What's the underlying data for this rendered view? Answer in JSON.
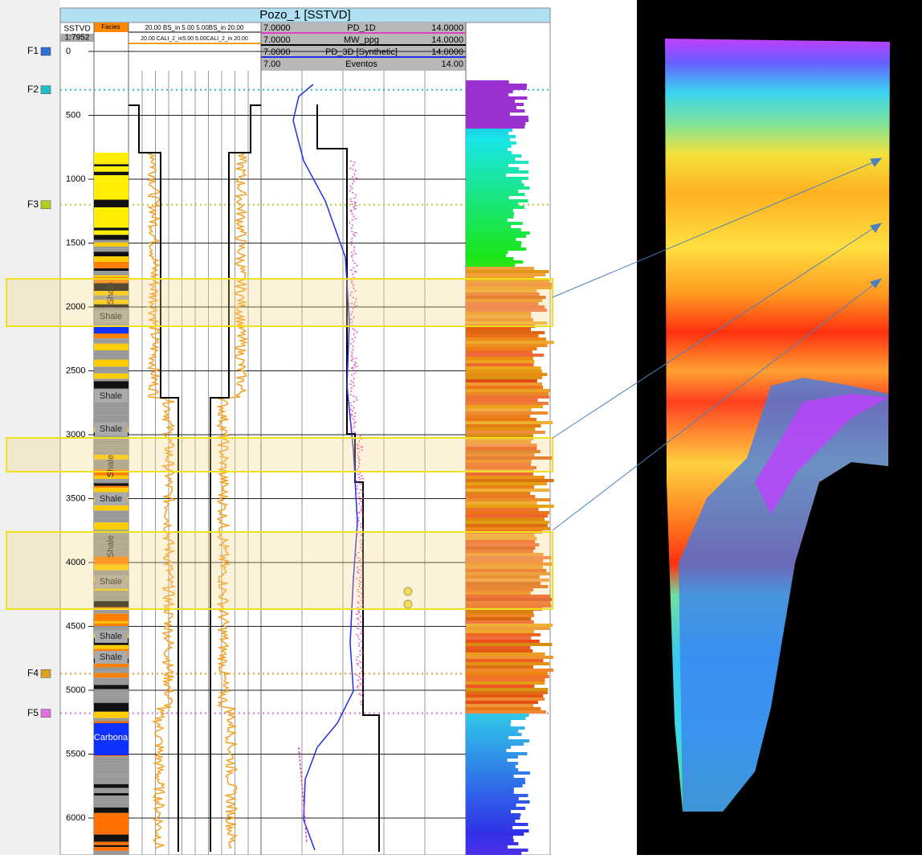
{
  "header": {
    "title": "Pozo_1 [SSTVD]",
    "depth_label": "SSTVD",
    "scale": "1:7952",
    "facies_label": "Facies"
  },
  "track2_headers": [
    "20.00  BS_in 5.00 5.00BS_in  20.00",
    "20.00  CALI_2_in5.00 5.00CALI_2_in  20.00"
  ],
  "track3_headers": [
    {
      "min": "7.0000",
      "name": "PD_1D",
      "max": "14.0000"
    },
    {
      "min": "7.0000",
      "name": "MW_ppg",
      "max": "14.0000"
    },
    {
      "min": "7.0000",
      "name": "PD_3D [Synthetic]",
      "max": "14.0000"
    },
    {
      "min": "7.00",
      "name": "Eventos",
      "max": "14.00"
    }
  ],
  "depth_ticks": [
    0,
    500,
    1000,
    1500,
    2000,
    2500,
    3000,
    3500,
    4000,
    4500,
    5000,
    5500,
    6000
  ],
  "tops": [
    {
      "label": "F1",
      "depth": 0
    },
    {
      "label": "F2",
      "depth": 300
    },
    {
      "label": "F3",
      "depth": 1200
    },
    {
      "label": "F4",
      "depth": 4870
    },
    {
      "label": "F5",
      "depth": 5180
    }
  ],
  "lithology_labels": [
    "Shale",
    "Shale",
    "Shale",
    "Shale",
    "Shale",
    "Shale",
    "Shale",
    "Shale",
    "Shale",
    "Shale",
    "Carbona"
  ]
}
